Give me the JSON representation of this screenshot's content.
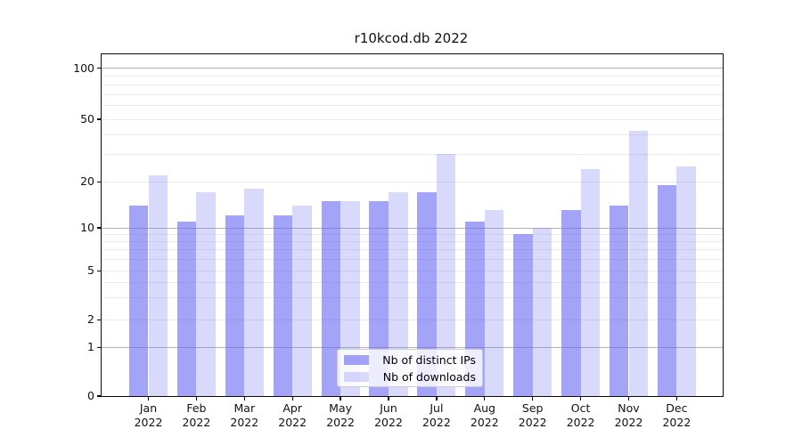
{
  "title": "r10kcod.db 2022",
  "chart_data": {
    "type": "bar",
    "title": "r10kcod.db 2022",
    "categories": [
      "Jan 2022",
      "Feb 2022",
      "Mar 2022",
      "Apr 2022",
      "May 2022",
      "Jun 2022",
      "Jul 2022",
      "Aug 2022",
      "Sep 2022",
      "Oct 2022",
      "Nov 2022",
      "Dec 2022"
    ],
    "series": [
      {
        "name": "Nb of distinct IPs",
        "values": [
          14,
          11,
          12,
          12,
          15,
          15,
          17,
          11,
          9,
          13,
          14,
          19
        ],
        "color": "rgba(102,102,242,0.6)"
      },
      {
        "name": "Nb of downloads",
        "values": [
          22,
          17,
          18,
          14,
          15,
          17,
          30,
          13,
          10,
          24,
          42,
          25
        ],
        "color": "rgba(102,102,242,0.25)"
      }
    ],
    "xlabel": "",
    "ylabel": "",
    "yscale": "symlog",
    "ylim": [
      0,
      122
    ],
    "yticks": [
      0,
      1,
      2,
      5,
      10,
      20,
      50,
      100
    ],
    "major_gridlines": [
      1,
      10,
      100
    ],
    "minor_gridlines": [
      2,
      3,
      4,
      5,
      6,
      7,
      8,
      9,
      20,
      30,
      40,
      50,
      60,
      70,
      80,
      90
    ],
    "grid": "on",
    "legend_position": "lower center"
  },
  "colors": {
    "bar_ips": "rgba(102,102,242,0.6)",
    "bar_downloads": "rgba(102,102,242,0.25)",
    "major_grid": "#b3b3b3",
    "minor_grid": "#e9e9ef",
    "spine": "#0a0a0a",
    "background": "#ffffff"
  }
}
